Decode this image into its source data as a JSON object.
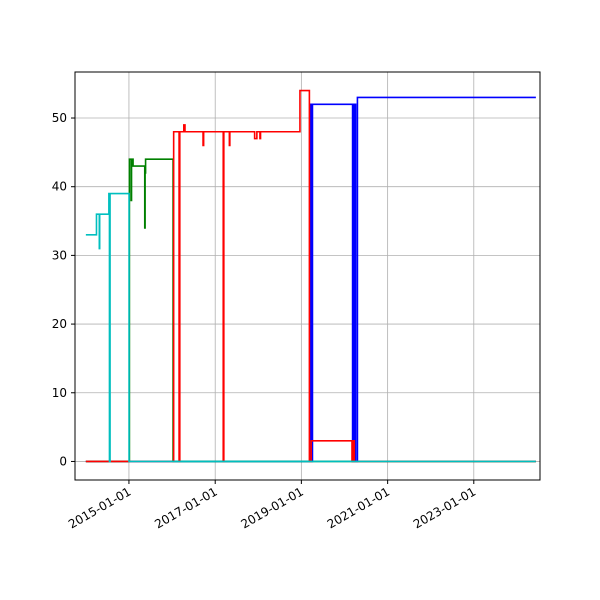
{
  "chart_data": {
    "type": "line",
    "title": "",
    "xlabel": "",
    "ylabel": "",
    "x_type": "date",
    "xlim": [
      "2013-10-01",
      "2024-07-15"
    ],
    "ylim": [
      -2.7,
      56.7
    ],
    "grid": true,
    "legend": "none",
    "x_ticks": [
      "2015-01-01",
      "2017-01-01",
      "2019-01-01",
      "2021-01-01",
      "2023-01-01"
    ],
    "y_ticks": [
      0,
      10,
      20,
      30,
      40,
      50
    ],
    "series": [
      {
        "color": "#0000ff",
        "points": [
          [
            "2014-01-01",
            0
          ],
          [
            "2019-03-15",
            0
          ],
          [
            "2019-03-15",
            3
          ],
          [
            "2019-03-22",
            3
          ],
          [
            "2019-03-22",
            52
          ],
          [
            "2019-03-29",
            52
          ],
          [
            "2019-03-29",
            0
          ],
          [
            "2019-04-05",
            0
          ],
          [
            "2019-04-05",
            52
          ],
          [
            "2020-03-10",
            52
          ],
          [
            "2020-03-10",
            0
          ],
          [
            "2020-03-15",
            0
          ],
          [
            "2020-03-15",
            52
          ],
          [
            "2020-03-20",
            52
          ],
          [
            "2020-03-20",
            0
          ],
          [
            "2020-03-25",
            0
          ],
          [
            "2020-03-25",
            52
          ],
          [
            "2020-04-05",
            52
          ],
          [
            "2020-04-05",
            0
          ],
          [
            "2020-04-20",
            0
          ],
          [
            "2020-04-20",
            53
          ],
          [
            "2024-06-10",
            53
          ]
        ]
      },
      {
        "color": "#008000",
        "points": [
          [
            "2014-01-01",
            0
          ],
          [
            "2015-01-05",
            0
          ],
          [
            "2015-01-05",
            44
          ],
          [
            "2015-01-20",
            44
          ],
          [
            "2015-01-20",
            38
          ],
          [
            "2015-01-23",
            38
          ],
          [
            "2015-01-23",
            44
          ],
          [
            "2015-02-05",
            44
          ],
          [
            "2015-02-05",
            43
          ],
          [
            "2015-05-15",
            43
          ],
          [
            "2015-05-15",
            34
          ],
          [
            "2015-05-18",
            34
          ],
          [
            "2015-05-18",
            42
          ],
          [
            "2015-05-22",
            42
          ],
          [
            "2015-05-22",
            44
          ],
          [
            "2016-01-10",
            44
          ],
          [
            "2016-01-10",
            0
          ],
          [
            "2024-06-10",
            0
          ]
        ]
      },
      {
        "color": "#ff0000",
        "points": [
          [
            "2014-01-01",
            0
          ],
          [
            "2016-01-15",
            0
          ],
          [
            "2016-01-15",
            48
          ],
          [
            "2016-03-01",
            48
          ],
          [
            "2016-03-01",
            0
          ],
          [
            "2016-03-07",
            0
          ],
          [
            "2016-03-07",
            48
          ],
          [
            "2016-04-10",
            48
          ],
          [
            "2016-04-10",
            49
          ],
          [
            "2016-04-20",
            49
          ],
          [
            "2016-04-20",
            48
          ],
          [
            "2016-09-20",
            48
          ],
          [
            "2016-09-20",
            46
          ],
          [
            "2016-09-25",
            46
          ],
          [
            "2016-09-25",
            48
          ],
          [
            "2017-03-10",
            48
          ],
          [
            "2017-03-10",
            0
          ],
          [
            "2017-03-15",
            0
          ],
          [
            "2017-03-15",
            48
          ],
          [
            "2017-05-01",
            48
          ],
          [
            "2017-05-01",
            46
          ],
          [
            "2017-05-05",
            46
          ],
          [
            "2017-05-05",
            48
          ],
          [
            "2017-12-01",
            48
          ],
          [
            "2017-12-01",
            47
          ],
          [
            "2017-12-20",
            47
          ],
          [
            "2017-12-20",
            48
          ],
          [
            "2018-01-15",
            48
          ],
          [
            "2018-01-15",
            47
          ],
          [
            "2018-01-20",
            47
          ],
          [
            "2018-01-20",
            48
          ],
          [
            "2018-12-20",
            48
          ],
          [
            "2018-12-20",
            54
          ],
          [
            "2019-03-10",
            54
          ],
          [
            "2019-03-10",
            0
          ],
          [
            "2019-03-25",
            0
          ],
          [
            "2019-03-25",
            3
          ],
          [
            "2020-03-05",
            3
          ],
          [
            "2020-03-05",
            0
          ],
          [
            "2020-03-15",
            0
          ],
          [
            "2020-03-15",
            3
          ],
          [
            "2020-03-25",
            3
          ],
          [
            "2020-03-25",
            0
          ],
          [
            "2024-06-10",
            0
          ]
        ]
      },
      {
        "color": "#00bfbf",
        "points": [
          [
            "2014-01-01",
            33
          ],
          [
            "2014-04-01",
            33
          ],
          [
            "2014-04-01",
            36
          ],
          [
            "2014-04-25",
            36
          ],
          [
            "2014-04-25",
            31
          ],
          [
            "2014-04-28",
            31
          ],
          [
            "2014-04-28",
            36
          ],
          [
            "2014-07-15",
            36
          ],
          [
            "2014-07-15",
            39
          ],
          [
            "2014-07-20",
            39
          ],
          [
            "2014-07-20",
            0
          ],
          [
            "2014-07-25",
            0
          ],
          [
            "2014-07-25",
            39
          ],
          [
            "2015-01-02",
            39
          ],
          [
            "2015-01-02",
            0
          ],
          [
            "2024-06-10",
            0
          ]
        ]
      }
    ]
  }
}
